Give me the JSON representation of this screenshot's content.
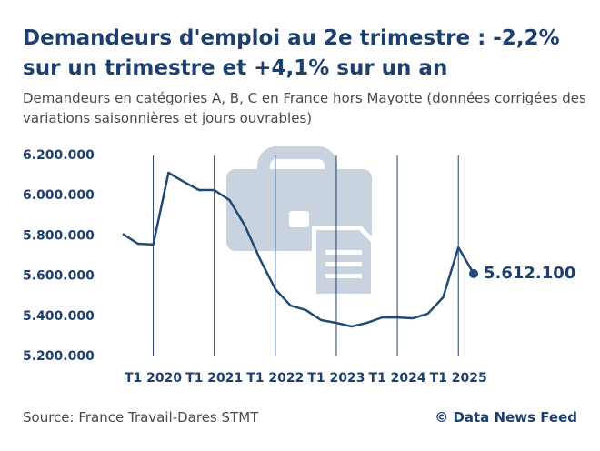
{
  "chart_data": {
    "type": "line",
    "title": "Demandeurs d'emploi au 2e trimestre : -2,2% sur un trimestre et +4,1% sur un an",
    "subtitle": "Demandeurs en catégories A, B, C en France hors Mayotte (données corrigées des variations saisonnières et jours ouvrables)",
    "source": "Source: France Travail-Dares STMT",
    "credit": "© Data News Feed",
    "categories": [
      null,
      null,
      "T1 2020",
      null,
      null,
      null,
      "T1 2021",
      null,
      null,
      null,
      "T1 2022",
      null,
      null,
      null,
      "T1 2023",
      null,
      null,
      null,
      "T1 2024",
      null,
      null,
      null,
      "T1 2025",
      null
    ],
    "series": [
      {
        "name": "Demandeurs en catégories A, B, C",
        "color": "#1f4a75",
        "values": [
          5810000,
          5761000,
          5757000,
          6114000,
          6069000,
          6028000,
          6028000,
          5978000,
          5852000,
          5684000,
          5535000,
          5453000,
          5431000,
          5381000,
          5367000,
          5349000,
          5367000,
          5394000,
          5394000,
          5390000,
          5413000,
          5494000,
          5743000,
          5612100
        ],
        "value_labels": [
          null,
          null,
          null,
          null,
          null,
          null,
          null,
          null,
          null,
          null,
          null,
          null,
          null,
          null,
          null,
          null,
          null,
          null,
          null,
          null,
          null,
          null,
          null,
          "5.612.100"
        ]
      }
    ],
    "ylim": [
      5200000,
      6200000
    ],
    "yticks": [
      {
        "value": 5200000,
        "label": "5.200.000"
      },
      {
        "value": 5400000,
        "label": "5.400.000"
      },
      {
        "value": 5600000,
        "label": "5.600.000"
      },
      {
        "value": 5800000,
        "label": "5.800.000"
      },
      {
        "value": 6000000,
        "label": "6.000.000"
      },
      {
        "value": 6200000,
        "label": "6.200.000"
      }
    ],
    "grid": "x"
  }
}
